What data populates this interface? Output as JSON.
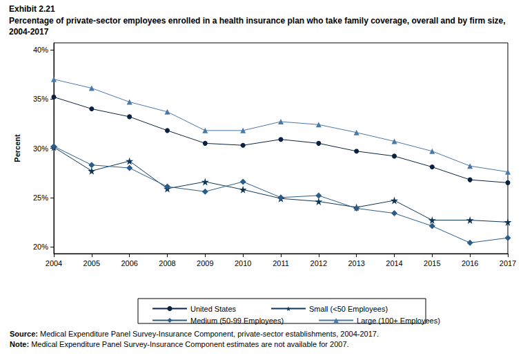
{
  "chart_data": {
    "type": "line",
    "title": "Exhibit 2.21",
    "subtitle": "Percentage of private-sector employees enrolled in a health insurance plan who take family coverage, overall and by firm size, 2004-2017",
    "y_label": "Percent",
    "categories": [
      "2004",
      "2005",
      "2006",
      "2008",
      "2009",
      "2010",
      "2011",
      "2012",
      "2013",
      "2014",
      "2015",
      "2016",
      "2017"
    ],
    "series": [
      {
        "name": "United States",
        "color": "#0a2240",
        "marker": "circle",
        "values": [
          35.2,
          34.0,
          33.2,
          31.8,
          30.5,
          30.3,
          30.9,
          30.5,
          29.7,
          29.2,
          28.1,
          26.8,
          26.5
        ]
      },
      {
        "name": "Small (<50 Employees)",
        "color": "#0d3556",
        "marker": "star",
        "values": [
          30.1,
          27.7,
          28.7,
          25.9,
          26.6,
          25.8,
          24.9,
          24.6,
          24.0,
          24.7,
          22.7,
          22.7,
          22.5
        ]
      },
      {
        "name": "Medium (50-99 Employees)",
        "color": "#2b5c88",
        "marker": "diamond",
        "values": [
          30.2,
          28.3,
          28.0,
          26.1,
          25.6,
          26.6,
          25.0,
          25.2,
          23.9,
          23.4,
          22.1,
          20.4,
          20.9
        ]
      },
      {
        "name": "Large (100+ Employees)",
        "color": "#4a78a8",
        "marker": "triangle",
        "values": [
          37.0,
          36.1,
          34.7,
          33.7,
          31.8,
          31.8,
          32.7,
          32.4,
          31.6,
          30.7,
          29.7,
          28.2,
          27.6
        ]
      }
    ],
    "ylim": [
      19.3,
      40.7
    ],
    "yticks": [
      {
        "value": 20,
        "label": "20%"
      },
      {
        "value": 25,
        "label": "25%"
      },
      {
        "value": 30,
        "label": "30%"
      },
      {
        "value": 35,
        "label": "35%"
      },
      {
        "value": 40,
        "label": "40%"
      }
    ],
    "grid": false,
    "legend": "bottom",
    "notes": [
      {
        "label": "Source:",
        "text": "Medical Expenditure Panel Survey-Insurance Component, private-sector establishments, 2004-2017."
      },
      {
        "label": "Note:",
        "text": "Medical Expenditure Panel Survey-Insurance Component estimates are not available for 2007."
      }
    ]
  }
}
